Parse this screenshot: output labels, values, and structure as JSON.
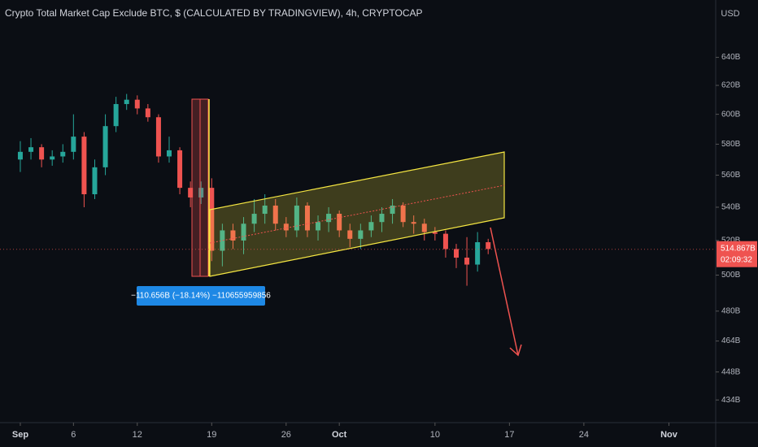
{
  "chart_data": {
    "type": "candlestick",
    "title": "Crypto Total Market Cap Exclude BTC, $ (CALCULATED BY TRADINGVIEW), 4h, CRYPTOCAP",
    "currency": "USD",
    "log": true,
    "up_color": "#26a69a",
    "down_color": "#ef5350",
    "x": [
      0,
      1,
      2,
      3,
      4,
      5,
      6,
      7,
      8,
      9,
      10,
      11,
      12,
      13,
      14,
      15,
      16,
      17,
      18,
      19,
      20,
      21,
      22,
      23,
      24,
      25,
      26,
      27,
      28,
      29,
      30,
      31,
      32,
      33,
      34,
      35,
      36,
      37,
      38,
      39,
      40,
      41,
      42,
      43,
      44
    ],
    "open": [
      570,
      575,
      578,
      570,
      572,
      575,
      585,
      548,
      565,
      592,
      607,
      610,
      604,
      598,
      572,
      576,
      552,
      546,
      552,
      514,
      526,
      520,
      530,
      536,
      541,
      530,
      526,
      541,
      526,
      531,
      536,
      526,
      521,
      526,
      531,
      536,
      541,
      531,
      530,
      525,
      524,
      515,
      510,
      506,
      519
    ],
    "high": [
      582,
      584,
      580,
      576,
      580,
      600,
      588,
      570,
      600,
      612,
      614,
      613,
      607,
      600,
      585,
      578,
      556,
      556,
      558,
      530,
      530,
      534,
      545,
      548,
      545,
      534,
      546,
      543,
      535,
      540,
      538,
      530,
      530,
      535,
      540,
      545,
      543,
      535,
      533,
      528,
      526,
      518,
      522,
      525,
      521
    ],
    "low": [
      562,
      570,
      565,
      566,
      568,
      570,
      540,
      545,
      560,
      588,
      603,
      600,
      595,
      568,
      568,
      548,
      540,
      542,
      508,
      505,
      515,
      512,
      525,
      530,
      526,
      522,
      522,
      522,
      520,
      525,
      522,
      516,
      515,
      522,
      525,
      530,
      528,
      524,
      520,
      520,
      510,
      504,
      494,
      502,
      512
    ],
    "close": [
      575,
      578,
      570,
      572,
      575,
      585,
      548,
      565,
      592,
      607,
      610,
      604,
      598,
      572,
      576,
      552,
      546,
      552,
      514,
      526,
      520,
      530,
      536,
      541,
      530,
      526,
      541,
      526,
      531,
      536,
      526,
      521,
      526,
      531,
      536,
      541,
      531,
      530,
      525,
      524,
      515,
      510,
      506,
      519,
      515
    ],
    "xlim": [
      -1.91,
      65.4
    ],
    "xticks": [
      {
        "value": 0,
        "label": "Sep"
      },
      {
        "value": 5,
        "label": "6"
      },
      {
        "value": 11,
        "label": "12"
      },
      {
        "value": 18,
        "label": "19"
      },
      {
        "value": 25,
        "label": "26"
      },
      {
        "value": 30,
        "label": "Oct"
      },
      {
        "value": 39,
        "label": "10"
      },
      {
        "value": 46,
        "label": "17"
      },
      {
        "value": 53,
        "label": "24"
      },
      {
        "value": 61,
        "label": "Nov"
      }
    ],
    "ylim": [
      423,
      683
    ],
    "yticks": [
      {
        "value": 640,
        "label": "640B"
      },
      {
        "value": 620,
        "label": "620B"
      },
      {
        "value": 600,
        "label": "600B"
      },
      {
        "value": 580,
        "label": "580B"
      },
      {
        "value": 560,
        "label": "560B"
      },
      {
        "value": 540,
        "label": "540B"
      },
      {
        "value": 520,
        "label": "520B"
      },
      {
        "value": 500,
        "label": "500B"
      },
      {
        "value": 480,
        "label": "480B"
      },
      {
        "value": 464,
        "label": "464B"
      },
      {
        "value": 448,
        "label": "448B"
      },
      {
        "value": 434,
        "label": "434B"
      }
    ],
    "last_price": {
      "value": 514.867,
      "label": "514.867B"
    },
    "countdown": "02:09:32",
    "measure_label": "−110.656B (−18.14%) −110655959856"
  }
}
